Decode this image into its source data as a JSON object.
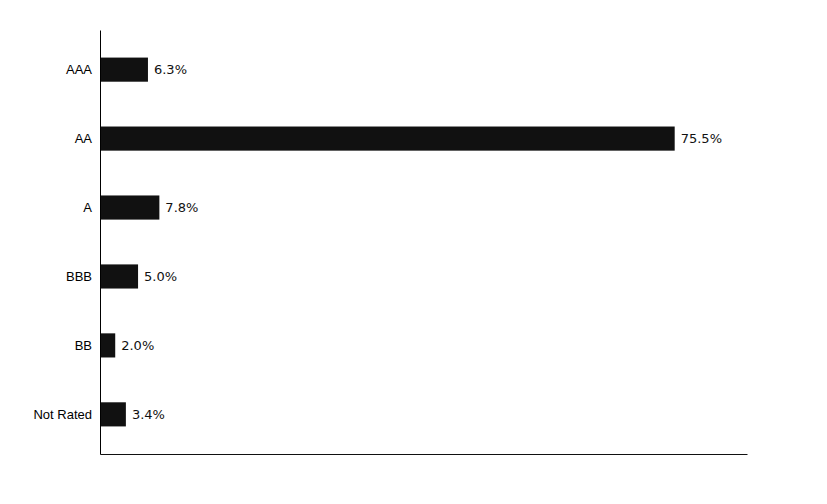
{
  "chart_data": {
    "type": "bar",
    "orientation": "horizontal",
    "categories": [
      "AAA",
      "AA",
      "A",
      "BBB",
      "BB",
      "Not Rated"
    ],
    "values": [
      6.3,
      75.5,
      7.8,
      5.0,
      2.0,
      3.4
    ],
    "value_labels": [
      "6.3%",
      "75.5%",
      "7.8%",
      "5.0%",
      "2.0%",
      "3.4%"
    ],
    "color": "#111111",
    "xlim": [
      0,
      85
    ],
    "data_labels": true,
    "tick_labels": "y"
  }
}
